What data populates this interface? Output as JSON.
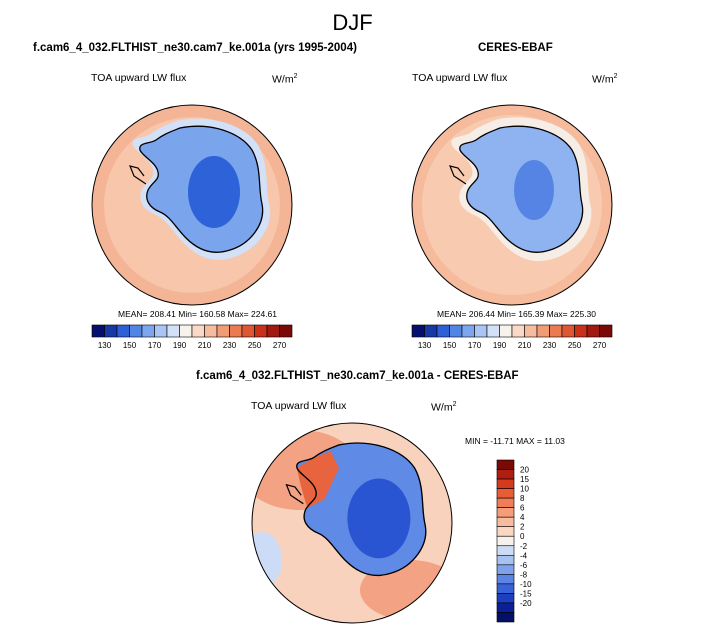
{
  "page_title": "DJF",
  "chart_data": [
    {
      "type": "heatmap",
      "title": "f.cam6_4_032.FLTHIST_ne30.cam7_ke.001a (yrs 1995-2004)",
      "left_label": "TOA upward LW flux",
      "units": "W/m",
      "units_sup": "2",
      "stats": "MEAN= 208.41   Min= 160.58   Max= 224.61",
      "stats_values": {
        "mean": 208.41,
        "min": 160.58,
        "max": 224.61
      },
      "colorbar_labels": [
        "130",
        "150",
        "170",
        "190",
        "210",
        "230",
        "250",
        "270"
      ],
      "colorbar_colors": [
        "#05106e",
        "#1838a8",
        "#2d5fd6",
        "#4f86e6",
        "#7da6ee",
        "#a9c5f3",
        "#d3e1f8",
        "#f7f3ec",
        "#fad9c6",
        "#f7bb9d",
        "#f29c76",
        "#eb7a52",
        "#df5632",
        "#c8321a",
        "#a11a0e",
        "#7a0a05"
      ],
      "map_fields": {
        "ocean": "#f8c6aa",
        "ocean_outer": "#f4b596",
        "antarctica_mid": "#7aa4ec",
        "antarctica_deep": "#2e62d8",
        "coast_ring": "#d2e0f8"
      }
    },
    {
      "type": "heatmap",
      "title": "CERES-EBAF",
      "left_label": "TOA upward LW flux",
      "units": "W/m",
      "units_sup": "2",
      "stats": "MEAN= 206.44   Min= 165.39   Max= 225.30",
      "stats_values": {
        "mean": 206.44,
        "min": 165.39,
        "max": 225.3
      },
      "colorbar_labels": [
        "130",
        "150",
        "170",
        "190",
        "210",
        "230",
        "250",
        "270"
      ],
      "colorbar_colors": [
        "#05106e",
        "#1838a8",
        "#2d5fd6",
        "#4f86e6",
        "#7da6ee",
        "#a9c5f3",
        "#d3e1f8",
        "#f7f3ec",
        "#fad9c6",
        "#f7bb9d",
        "#f29c76",
        "#eb7a52",
        "#df5632",
        "#c8321a",
        "#a11a0e",
        "#7a0a05"
      ],
      "map_fields": {
        "ocean": "#f8cbb0",
        "ocean_outer": "#f6bb9c",
        "antarctica_mid": "#8fb2f0",
        "antarctica_deep": "#5584e4",
        "coast_ring": "#f6ede6"
      }
    },
    {
      "type": "heatmap",
      "title": "f.cam6_4_032.FLTHIST_ne30.cam7_ke.001a - CERES-EBAF",
      "left_label": "TOA upward LW flux",
      "units": "W/m",
      "units_sup": "2",
      "stats": "MIN = -11.71  MAX =  11.03",
      "stats_values": {
        "min": -11.71,
        "max": 11.03
      },
      "colorbar_labels": [
        "20",
        "15",
        "10",
        "8",
        "6",
        "4",
        "2",
        "0",
        "-2",
        "-4",
        "-6",
        "-8",
        "-10",
        "-15",
        "-20"
      ],
      "colorbar_colors": [
        "#7a0a05",
        "#b01e10",
        "#d63a1e",
        "#ea5c36",
        "#f27c55",
        "#f59c78",
        "#f8bb9d",
        "#fad7c3",
        "#f7f1ec",
        "#cddcf6",
        "#a7c2f2",
        "#7ea2ec",
        "#5b84e4",
        "#3a62d8",
        "#1c3fbf",
        "#0a1f98",
        "#050f6a"
      ],
      "map_fields": {
        "ocean": "#f9d2bd",
        "ocean_warm": "#f3a283",
        "antarctica": "#5f8ae6",
        "antarctica_deep": "#2a55d2",
        "west_warm": "#e8643f"
      }
    }
  ]
}
